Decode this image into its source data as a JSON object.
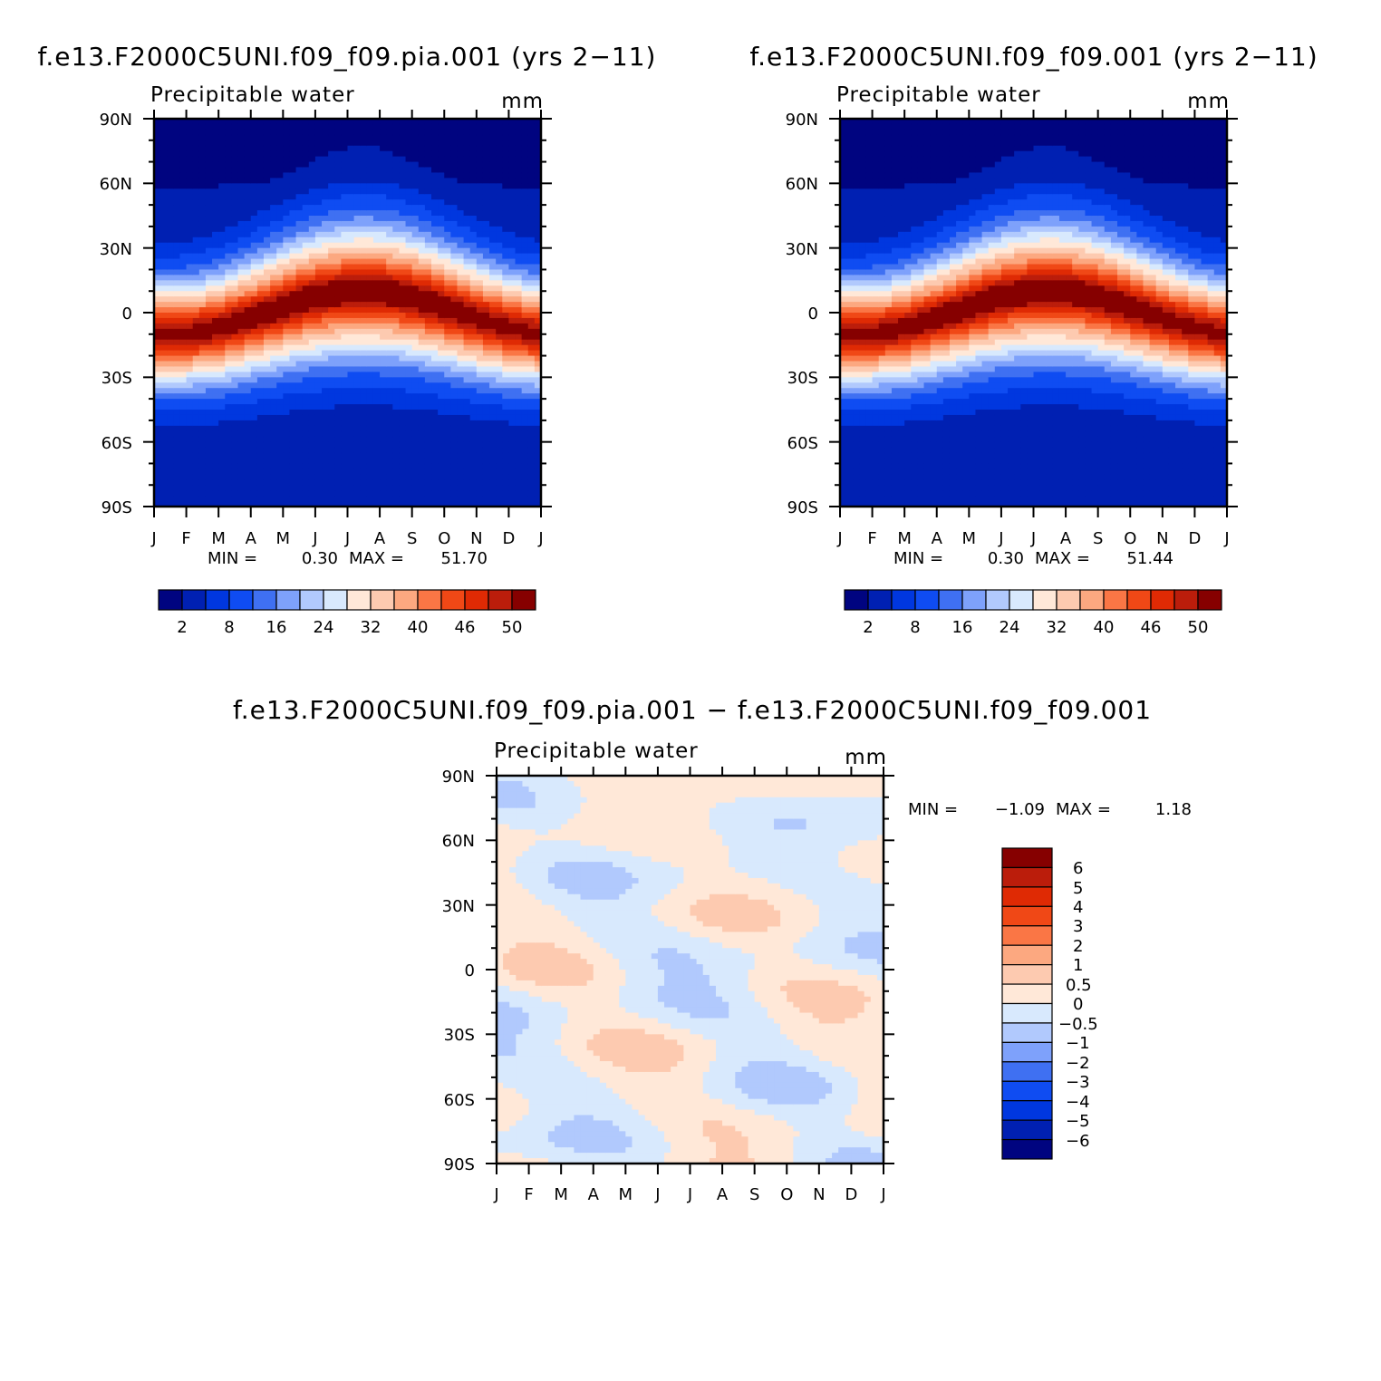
{
  "chart_data": [
    {
      "type": "heatmap",
      "title": "f.e13.F2000C5UNI.f09_f09.pia.001 (yrs 2−11)",
      "subtitle_left": "Precipitable water",
      "subtitle_right": "mm",
      "x_categories": [
        "J",
        "F",
        "M",
        "A",
        "M",
        "J",
        "J",
        "A",
        "S",
        "O",
        "N",
        "D",
        "J"
      ],
      "y_ticks": [
        "90N",
        "60N",
        "30N",
        "0",
        "30S",
        "60S",
        "90S"
      ],
      "y_range": [
        -90,
        90
      ],
      "min_label": "MIN =",
      "min_value": "0.30",
      "max_label": "MAX =",
      "max_value": "51.70",
      "colorbar_labels": [
        "2",
        "8",
        "16",
        "24",
        "32",
        "40",
        "46",
        "50"
      ],
      "colorbar_levels": [
        2,
        5,
        8,
        12,
        16,
        20,
        24,
        28,
        32,
        36,
        40,
        43,
        46,
        48,
        50
      ],
      "field": "pw"
    },
    {
      "type": "heatmap",
      "title": "f.e13.F2000C5UNI.f09_f09.001 (yrs 2−11)",
      "subtitle_left": "Precipitable water",
      "subtitle_right": "mm",
      "x_categories": [
        "J",
        "F",
        "M",
        "A",
        "M",
        "J",
        "J",
        "A",
        "S",
        "O",
        "N",
        "D",
        "J"
      ],
      "y_ticks": [
        "90N",
        "60N",
        "30N",
        "0",
        "30S",
        "60S",
        "90S"
      ],
      "y_range": [
        -90,
        90
      ],
      "min_label": "MIN =",
      "min_value": "0.30",
      "max_label": "MAX =",
      "max_value": "51.44",
      "colorbar_labels": [
        "2",
        "8",
        "16",
        "24",
        "32",
        "40",
        "46",
        "50"
      ],
      "colorbar_levels": [
        2,
        5,
        8,
        12,
        16,
        20,
        24,
        28,
        32,
        36,
        40,
        43,
        46,
        48,
        50
      ],
      "field": "pw"
    },
    {
      "type": "heatmap",
      "title": "f.e13.F2000C5UNI.f09_f09.pia.001 − f.e13.F2000C5UNI.f09_f09.001",
      "subtitle_left": "Precipitable water",
      "subtitle_right": "mm",
      "x_categories": [
        "J",
        "F",
        "M",
        "A",
        "M",
        "J",
        "J",
        "A",
        "S",
        "O",
        "N",
        "D",
        "J"
      ],
      "y_ticks": [
        "90N",
        "60N",
        "30N",
        "0",
        "30S",
        "60S",
        "90S"
      ],
      "y_range": [
        -90,
        90
      ],
      "min_label": "MIN =",
      "min_value": "−1.09",
      "max_label": "MAX =",
      "max_value": "1.18",
      "colorbar_labels": [
        "6",
        "5",
        "4",
        "3",
        "2",
        "1",
        "0.5",
        "0",
        "−0.5",
        "−1",
        "−2",
        "−3",
        "−4",
        "−5",
        "−6"
      ],
      "colorbar_levels": [
        -6,
        -5,
        -4,
        -3,
        -2,
        -1,
        -0.5,
        0,
        0.5,
        1,
        2,
        3,
        4,
        5,
        6
      ],
      "field": "diff"
    }
  ],
  "colors": {
    "sequential": [
      "#000480",
      "#0020b2",
      "#0037df",
      "#0f4cf2",
      "#3f70f2",
      "#7ea1fb",
      "#b1c9fd",
      "#d8e9fd",
      "#ffe8d8",
      "#fdcab0",
      "#fca880",
      "#fa7645",
      "#f04816",
      "#df2a04",
      "#bb1d0b",
      "#860000"
    ]
  }
}
